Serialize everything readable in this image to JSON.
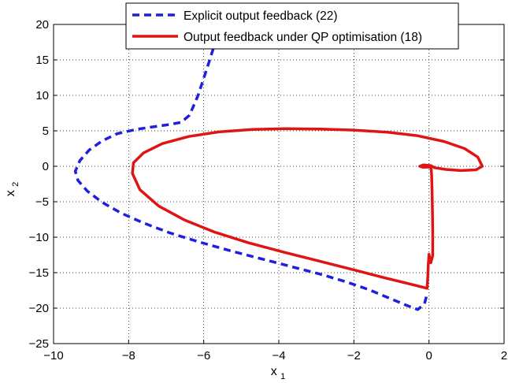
{
  "chart_data": {
    "type": "line",
    "title": "",
    "xlabel": {
      "base": "x",
      "sub": "1"
    },
    "ylabel": {
      "base": "x",
      "sub": "2"
    },
    "xlim": [
      -10,
      2
    ],
    "ylim": [
      -25,
      20
    ],
    "grid": true,
    "legend_position": "top-right",
    "x_ticks": [
      {
        "value": -10,
        "label": "−10"
      },
      {
        "value": -8,
        "label": "−8"
      },
      {
        "value": -6,
        "label": "−6"
      },
      {
        "value": -4,
        "label": "−4"
      },
      {
        "value": -2,
        "label": "−2"
      },
      {
        "value": 0,
        "label": "0"
      },
      {
        "value": 2,
        "label": "2"
      }
    ],
    "y_ticks": [
      {
        "value": 20,
        "label": "20"
      },
      {
        "value": 15,
        "label": "15"
      },
      {
        "value": 10,
        "label": "10"
      },
      {
        "value": 5,
        "label": "5"
      },
      {
        "value": 0,
        "label": "0"
      },
      {
        "value": -5,
        "label": "−5"
      },
      {
        "value": -10,
        "label": "−10"
      },
      {
        "value": -15,
        "label": "−15"
      },
      {
        "value": -20,
        "label": "−20"
      },
      {
        "value": -25,
        "label": "−25"
      }
    ],
    "series": [
      {
        "name": "Explicit output feedback (22)",
        "color": "#1f1fdd",
        "style": "dashed",
        "points": [
          [
            -5.65,
            18.2
          ],
          [
            -5.9,
            14.0
          ],
          [
            -6.15,
            10.0
          ],
          [
            -6.38,
            7.2
          ],
          [
            -6.6,
            6.2
          ],
          [
            -6.9,
            5.9
          ],
          [
            -7.3,
            5.6
          ],
          [
            -7.8,
            5.2
          ],
          [
            -8.3,
            4.6
          ],
          [
            -8.7,
            3.6
          ],
          [
            -9.05,
            2.3
          ],
          [
            -9.3,
            0.8
          ],
          [
            -9.42,
            -0.7
          ],
          [
            -9.35,
            -2.0
          ],
          [
            -9.1,
            -3.5
          ],
          [
            -8.7,
            -5.1
          ],
          [
            -8.2,
            -6.6
          ],
          [
            -7.6,
            -8.0
          ],
          [
            -6.9,
            -9.4
          ],
          [
            -6.1,
            -10.7
          ],
          [
            -5.3,
            -11.9
          ],
          [
            -4.5,
            -13.0
          ],
          [
            -3.7,
            -14.1
          ],
          [
            -2.9,
            -15.2
          ],
          [
            -2.2,
            -16.3
          ],
          [
            -1.6,
            -17.4
          ],
          [
            -1.1,
            -18.5
          ],
          [
            -0.6,
            -19.6
          ],
          [
            -0.3,
            -20.2
          ],
          [
            -0.12,
            -19.4
          ],
          [
            -0.05,
            -18.0
          ]
        ]
      },
      {
        "name": "Output feedback under QP optimisation (18)",
        "color": "#e01414",
        "style": "solid",
        "points": [
          [
            -0.05,
            -17.2
          ],
          [
            -0.5,
            -16.6
          ],
          [
            -1.2,
            -15.7
          ],
          [
            -2.0,
            -14.6
          ],
          [
            -2.9,
            -13.4
          ],
          [
            -3.8,
            -12.2
          ],
          [
            -4.8,
            -10.8
          ],
          [
            -5.7,
            -9.3
          ],
          [
            -6.5,
            -7.6
          ],
          [
            -7.2,
            -5.6
          ],
          [
            -7.7,
            -3.3
          ],
          [
            -7.9,
            -1.0
          ],
          [
            -7.87,
            0.5
          ],
          [
            -7.6,
            1.9
          ],
          [
            -7.1,
            3.2
          ],
          [
            -6.4,
            4.2
          ],
          [
            -5.6,
            4.85
          ],
          [
            -4.7,
            5.2
          ],
          [
            -3.8,
            5.3
          ],
          [
            -2.9,
            5.25
          ],
          [
            -2.0,
            5.1
          ],
          [
            -1.1,
            4.8
          ],
          [
            -0.3,
            4.3
          ],
          [
            0.4,
            3.5
          ],
          [
            0.95,
            2.5
          ],
          [
            1.3,
            1.3
          ],
          [
            1.42,
            0.0
          ],
          [
            1.25,
            -0.5
          ],
          [
            0.85,
            -0.6
          ],
          [
            0.45,
            -0.45
          ],
          [
            0.15,
            -0.2
          ],
          [
            0.05,
            0.1
          ],
          [
            -0.15,
            0.2
          ],
          [
            -0.25,
            0.0
          ],
          [
            -0.15,
            -0.15
          ],
          [
            0.02,
            -0.1
          ],
          [
            0.06,
            -0.4
          ],
          [
            0.07,
            -1.2
          ],
          [
            0.08,
            -3.0
          ],
          [
            0.09,
            -6.0
          ],
          [
            0.1,
            -9.0
          ],
          [
            0.1,
            -11.5
          ],
          [
            0.1,
            -12.6
          ],
          [
            0.05,
            -13.6
          ],
          [
            0.0,
            -12.4
          ],
          [
            -0.02,
            -14.0
          ],
          [
            -0.03,
            -15.5
          ],
          [
            -0.05,
            -17.2
          ]
        ]
      }
    ]
  }
}
